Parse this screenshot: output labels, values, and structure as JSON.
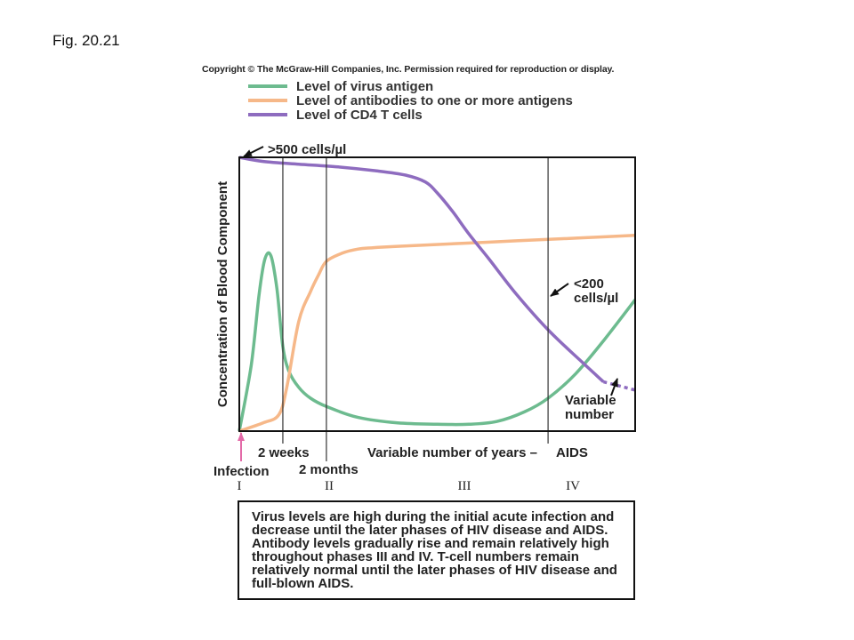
{
  "fig_label": "Fig. 20.21",
  "copyright": "Copyright © The McGraw-Hill Companies, Inc. Permission required for reproduction or display.",
  "legend": [
    {
      "label": "Level of virus antigen",
      "color": "#6dbb8f"
    },
    {
      "label": "Level of antibodies to one or more antigens",
      "color": "#f6b889"
    },
    {
      "label": "Level of CD4 T cells",
      "color": "#8e6cbf"
    }
  ],
  "caption": "Virus levels are high during the initial acute infection and decrease until the later phases of HIV disease and AIDS. Antibody levels gradually rise and remain relatively high throughout phases III and IV. T-cell numbers remain relatively normal until the later phases of HIV disease and full-blown AIDS.",
  "chart_data": {
    "type": "line",
    "title": "",
    "xlabel": "",
    "ylabel": "Concentration of Blood Component",
    "xlim": [
      0,
      100
    ],
    "ylim": [
      0,
      100
    ],
    "grid": false,
    "legend_position": "top",
    "x_axis_labels": [
      "2 weeks",
      "2 months",
      "Variable number of years –",
      "AIDS"
    ],
    "infection_label": "Infection",
    "phase_labels": [
      "I",
      "II",
      "III",
      "IV"
    ],
    "phase_boundaries_x": [
      11,
      22,
      78
    ],
    "annotations": {
      "cd4_start": ">500 cells/µl",
      "cd4_low": "<200 cells/µl",
      "variable": "Variable number"
    },
    "series": [
      {
        "name": "Level of virus antigen",
        "color": "#6dbb8f",
        "x": [
          0,
          3,
          5,
          6.5,
          8,
          9.5,
          11,
          12.5,
          15,
          18,
          22,
          30,
          40,
          50,
          58,
          65,
          72,
          78,
          85,
          92,
          100
        ],
        "y": [
          0,
          24,
          50,
          63,
          64,
          52,
          31,
          22,
          16,
          12,
          9,
          5,
          3,
          2.5,
          2.5,
          3.5,
          7,
          12,
          21,
          33,
          48
        ]
      },
      {
        "name": "Level of antibodies to one or more antigens",
        "color": "#f6b889",
        "x": [
          0,
          6,
          10,
          12,
          15,
          18,
          20,
          22,
          26,
          30,
          34,
          40,
          55,
          70,
          85,
          100
        ],
        "y": [
          0,
          3,
          6,
          16,
          40,
          51,
          57,
          62,
          65,
          66.5,
          67,
          67.5,
          68.5,
          69.5,
          70.5,
          71.5
        ]
      },
      {
        "name": "Level of CD4 T cells",
        "color": "#8e6cbf",
        "x": [
          0,
          6,
          15,
          25,
          35,
          42,
          47,
          50,
          54,
          58,
          63,
          70,
          78,
          86,
          92
        ],
        "y": [
          100,
          98.5,
          97.5,
          96.5,
          95,
          93.5,
          91,
          87,
          80,
          72,
          63,
          50,
          37,
          26,
          18
        ]
      },
      {
        "name": "",
        "color": "#8e6cbf",
        "dashed": true,
        "x": [
          92,
          100
        ],
        "y": [
          18,
          15
        ]
      }
    ]
  }
}
